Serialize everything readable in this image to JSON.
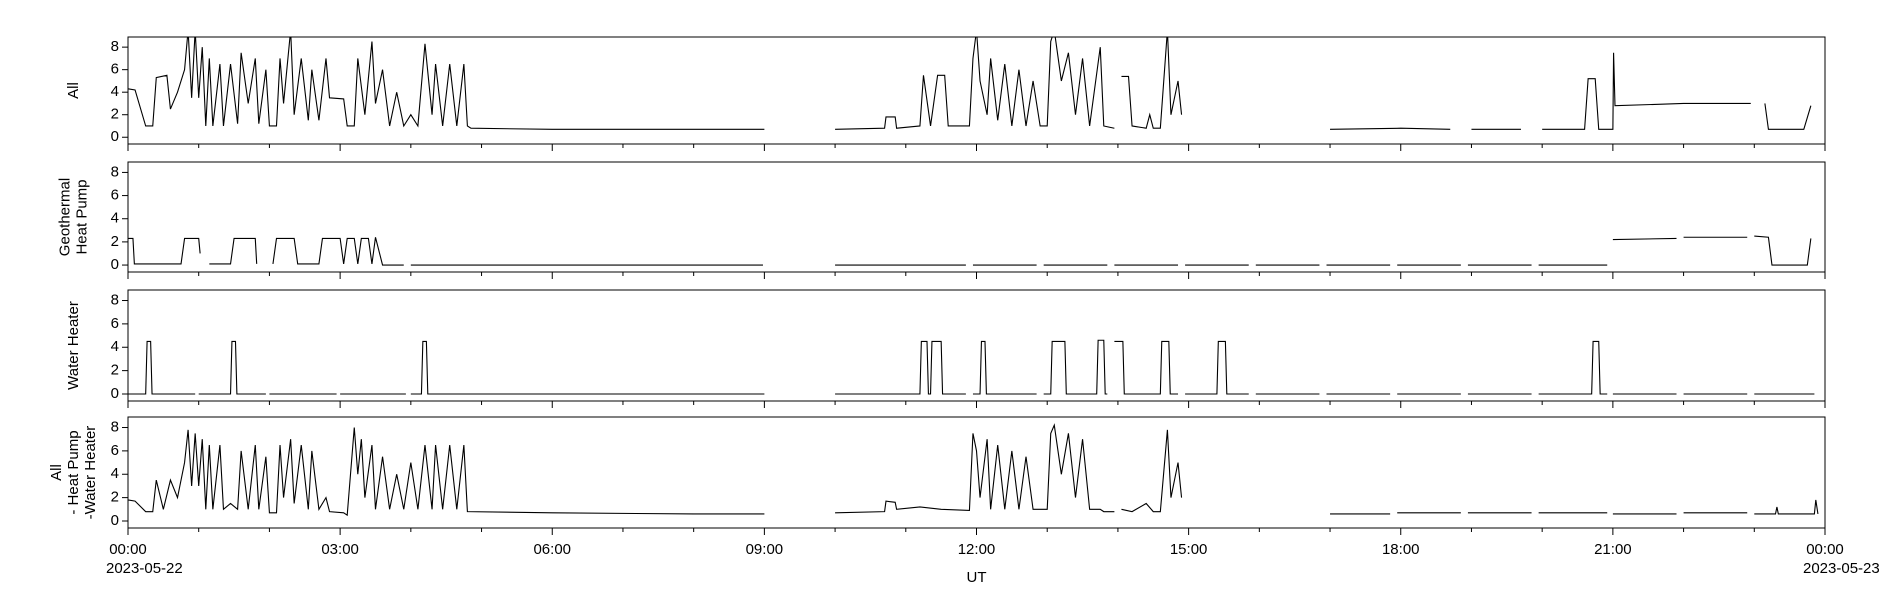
{
  "chart_data": [
    {
      "type": "line",
      "ylabel": [
        "All"
      ],
      "color": "#000000",
      "ylim": [
        -0.6,
        8.9
      ],
      "yticks": [
        0,
        2,
        4,
        6,
        8
      ],
      "xlim": [
        0,
        24
      ],
      "xticks": [
        0,
        3,
        6,
        9,
        12,
        15,
        18,
        21,
        24
      ],
      "xticks_minor": [
        1,
        2,
        4,
        5,
        7,
        8,
        10,
        11,
        13,
        14,
        16,
        17,
        19,
        20,
        22,
        23
      ],
      "x": [
        0,
        0.1,
        0.25,
        0.35,
        0.4,
        0.55,
        0.6,
        0.7,
        0.8,
        0.85,
        0.9,
        0.95,
        1.0,
        1.05,
        1.1,
        1.15,
        1.2,
        1.3,
        1.35,
        1.45,
        1.55,
        1.6,
        1.7,
        1.8,
        1.85,
        1.95,
        2.0,
        2.1,
        2.15,
        2.2,
        2.3,
        2.35,
        2.45,
        2.55,
        2.6,
        2.7,
        2.8,
        2.85,
        3.05,
        3.1,
        3.2,
        3.25,
        3.35,
        3.45,
        3.5,
        3.6,
        3.7,
        3.8,
        3.9,
        4.0,
        4.1,
        4.2,
        4.3,
        4.35,
        4.45,
        4.55,
        4.65,
        4.75,
        4.8,
        4.85,
        6,
        8,
        9,
        9.02,
        10,
        10.7,
        10.72,
        10.85,
        10.87,
        11.2,
        11.25,
        11.35,
        11.45,
        11.55,
        11.6,
        11.9,
        11.95,
        12,
        12.05,
        12.15,
        12.2,
        12.3,
        12.4,
        12.5,
        12.6,
        12.7,
        12.8,
        12.9,
        13,
        13.05,
        13.1,
        13.2,
        13.3,
        13.4,
        13.5,
        13.6,
        13.75,
        13.8,
        13.95,
        14,
        14.05,
        14.15,
        14.2,
        14.4,
        14.45,
        14.5,
        14.6,
        14.7,
        14.75,
        14.85,
        14.9,
        14.95,
        17,
        18,
        18.7,
        18.8,
        19,
        19.7,
        19.8,
        20,
        20.6,
        20.65,
        20.75,
        20.8,
        21,
        21.01,
        21.03,
        22,
        22.95,
        23.0,
        23.15,
        23.2,
        23.7,
        23.8
      ],
      "values": [
        4.3,
        4.2,
        1,
        1,
        5.3,
        5.5,
        2.5,
        4,
        6,
        9.5,
        3.5,
        9.5,
        3.5,
        8,
        1,
        7,
        1,
        6.5,
        1,
        6.5,
        1.2,
        7.5,
        3,
        7,
        1.2,
        6,
        1,
        1,
        7,
        3,
        9.5,
        2,
        7,
        1.5,
        6,
        1.5,
        7,
        3.5,
        3.4,
        1,
        1,
        7,
        2,
        8.5,
        3,
        6,
        1,
        4,
        1,
        2,
        1,
        8.3,
        2,
        6.5,
        1,
        6.5,
        1,
        6.5,
        1,
        0.8,
        0.7,
        0.7,
        0.7,
        null,
        0.7,
        0.8,
        1.8,
        1.8,
        0.8,
        1,
        5.5,
        1,
        5.5,
        5.5,
        1,
        1,
        7,
        9.5,
        5,
        2,
        7,
        1.5,
        6.5,
        1,
        6,
        1,
        5,
        1,
        1,
        8.5,
        9.5,
        5,
        7.5,
        2,
        7,
        1,
        8,
        1,
        0.8,
        null,
        5.4,
        5.4,
        1,
        0.8,
        2,
        0.8,
        0.8,
        9.5,
        2,
        5,
        2,
        null,
        0.7,
        0.8,
        0.7,
        null,
        0.7,
        0.7,
        null,
        0.7,
        0.7,
        5.2,
        5.2,
        0.7,
        0.7,
        7.5,
        2.8,
        3,
        3,
        null,
        3,
        0.7,
        0.7,
        2.8
      ]
    },
    {
      "type": "line",
      "ylabel": [
        "Geothermal",
        "Heat Pump"
      ],
      "color": "#000000",
      "ylim": [
        -0.6,
        8.9
      ],
      "yticks": [
        0,
        2,
        4,
        6,
        8
      ],
      "xlim": [
        0,
        24
      ],
      "xticks": [
        0,
        3,
        6,
        9,
        12,
        15,
        18,
        21,
        24
      ],
      "xticks_minor": [
        1,
        2,
        4,
        5,
        7,
        8,
        10,
        11,
        13,
        14,
        16,
        17,
        19,
        20,
        22,
        23
      ],
      "x": [
        0,
        0.07,
        0.09,
        0.75,
        0.8,
        1.0,
        1.02,
        1.1,
        1.15,
        1.45,
        1.5,
        1.8,
        1.82,
        2.0,
        2.05,
        2.1,
        2.35,
        2.4,
        2.7,
        2.75,
        3.0,
        3.05,
        3.1,
        3.2,
        3.25,
        3.3,
        3.4,
        3.45,
        3.5,
        3.6,
        3.9,
        3.93,
        4.0,
        8.98,
        9.0,
        10.0,
        11.85,
        11.9,
        11.95,
        12.85,
        12.9,
        12.95,
        13.85,
        13.9,
        13.95,
        14.85,
        14.9,
        14.95,
        15.85,
        15.9,
        15.95,
        16.85,
        16.9,
        16.95,
        17.85,
        17.9,
        17.95,
        18.85,
        18.9,
        18.95,
        19.85,
        19.9,
        19.95,
        20.92,
        20.97,
        21.0,
        21.9,
        21.95,
        22.0,
        22.9,
        22.95,
        23.0,
        23.2,
        23.25,
        23.75,
        23.8
      ],
      "values": [
        2.3,
        2.3,
        0.1,
        0.1,
        2.3,
        2.3,
        1,
        null,
        0.1,
        0.1,
        2.3,
        2.3,
        0.1,
        null,
        0.1,
        2.3,
        2.3,
        0.1,
        0.1,
        2.3,
        2.3,
        0.1,
        2.3,
        2.3,
        0.1,
        2.3,
        2.3,
        0.1,
        2.4,
        0,
        0,
        null,
        0,
        0,
        null,
        0,
        0,
        null,
        0,
        0,
        null,
        0,
        0,
        null,
        0,
        0,
        null,
        0,
        0,
        null,
        0,
        0,
        null,
        0,
        0,
        null,
        0,
        0,
        null,
        0,
        0,
        null,
        0,
        0,
        null,
        2.2,
        2.3,
        null,
        2.4,
        2.4,
        null,
        2.5,
        2.4,
        0,
        0,
        2.3
      ]
    },
    {
      "type": "line",
      "ylabel": [
        "Water Heater"
      ],
      "color": "#000000",
      "ylim": [
        -0.6,
        8.9
      ],
      "yticks": [
        0,
        2,
        4,
        6,
        8
      ],
      "xlim": [
        0,
        24
      ],
      "xticks": [
        0,
        3,
        6,
        9,
        12,
        15,
        18,
        21,
        24
      ],
      "xticks_minor": [
        1,
        2,
        4,
        5,
        7,
        8,
        10,
        11,
        13,
        14,
        16,
        17,
        19,
        20,
        22,
        23
      ],
      "x": [
        0,
        0.25,
        0.27,
        0.32,
        0.34,
        0.95,
        0.98,
        1.0,
        1.45,
        1.47,
        1.52,
        1.54,
        1.95,
        1.98,
        2.0,
        2.95,
        2.98,
        3.0,
        3.93,
        3.96,
        4.0,
        4.15,
        4.17,
        4.22,
        4.24,
        9.0,
        9.02,
        10.0,
        11.2,
        11.22,
        11.3,
        11.32,
        11.35,
        11.37,
        11.5,
        11.52,
        11.85,
        11.9,
        11.95,
        12.05,
        12.07,
        12.12,
        12.14,
        12.85,
        12.9,
        12.95,
        13.05,
        13.07,
        13.25,
        13.27,
        13.7,
        13.72,
        13.8,
        13.82,
        13.85,
        13.9,
        13.95,
        13.97,
        14.07,
        14.09,
        14.6,
        14.62,
        14.72,
        14.74,
        14.85,
        14.9,
        14.95,
        15.4,
        15.42,
        15.52,
        15.54,
        15.85,
        15.9,
        15.95,
        16.85,
        16.9,
        16.95,
        17.85,
        17.9,
        17.95,
        18.85,
        18.9,
        18.95,
        19.85,
        19.9,
        19.95,
        20.7,
        20.72,
        20.8,
        20.82,
        20.92,
        20.97,
        21.0,
        21.9,
        21.95,
        22.0,
        22.9,
        22.95,
        23.0,
        23.85
      ],
      "values": [
        0,
        0,
        4.5,
        4.5,
        0,
        0,
        null,
        0,
        0,
        4.5,
        4.5,
        0,
        0,
        null,
        0,
        0,
        null,
        0,
        0,
        null,
        0,
        0,
        4.5,
        4.5,
        0,
        0,
        null,
        0,
        0,
        4.5,
        4.5,
        0,
        0,
        4.5,
        4.5,
        0,
        0,
        null,
        0,
        0,
        4.5,
        4.5,
        0,
        0,
        null,
        0,
        0,
        4.5,
        4.5,
        0,
        0,
        4.6,
        4.6,
        0,
        0,
        null,
        4.5,
        4.5,
        4.5,
        0,
        0,
        4.5,
        4.5,
        0,
        0,
        null,
        0,
        0,
        4.5,
        4.5,
        0,
        0,
        null,
        0,
        0,
        null,
        0,
        0,
        null,
        0,
        0,
        null,
        0,
        0,
        null,
        0,
        0,
        4.5,
        4.5,
        0,
        0,
        null,
        0,
        0,
        null,
        0,
        0,
        null,
        0,
        0
      ]
    },
    {
      "type": "line",
      "ylabel": [
        "All",
        "- Heat Pump",
        "-Water Heater"
      ],
      "color": "#000000",
      "ylim": [
        -0.6,
        8.9
      ],
      "yticks": [
        0,
        2,
        4,
        6,
        8
      ],
      "xlim": [
        0,
        24
      ],
      "xticks": [
        {
          "value": 0,
          "label": "00:00"
        },
        {
          "value": 3,
          "label": "03:00"
        },
        {
          "value": 6,
          "label": "06:00"
        },
        {
          "value": 9,
          "label": "09:00"
        },
        {
          "value": 12,
          "label": "12:00"
        },
        {
          "value": 15,
          "label": "15:00"
        },
        {
          "value": 18,
          "label": "18:00"
        },
        {
          "value": 21,
          "label": "21:00"
        },
        {
          "value": 24,
          "label": "00:00"
        }
      ],
      "xticks_minor": [
        1,
        2,
        4,
        5,
        7,
        8,
        10,
        11,
        13,
        14,
        16,
        17,
        19,
        20,
        22,
        23
      ],
      "xlabel": "UT",
      "date_labels": [
        {
          "value": 0,
          "label": "2023-05-22"
        },
        {
          "value": 24,
          "label": "2023-05-23"
        }
      ],
      "x": [
        0,
        0.1,
        0.25,
        0.35,
        0.4,
        0.5,
        0.6,
        0.7,
        0.8,
        0.85,
        0.9,
        0.95,
        1.0,
        1.05,
        1.1,
        1.15,
        1.2,
        1.3,
        1.35,
        1.45,
        1.55,
        1.6,
        1.7,
        1.8,
        1.85,
        1.95,
        2.0,
        2.1,
        2.15,
        2.2,
        2.3,
        2.35,
        2.45,
        2.55,
        2.6,
        2.7,
        2.8,
        2.85,
        3.05,
        3.1,
        3.2,
        3.25,
        3.3,
        3.35,
        3.45,
        3.5,
        3.6,
        3.7,
        3.8,
        3.9,
        4.0,
        4.1,
        4.2,
        4.3,
        4.35,
        4.45,
        4.55,
        4.65,
        4.75,
        4.8,
        6,
        8,
        9,
        9.02,
        10,
        10.7,
        10.72,
        10.85,
        10.87,
        11.2,
        11.5,
        11.9,
        11.95,
        12,
        12.05,
        12.15,
        12.2,
        12.3,
        12.4,
        12.5,
        12.6,
        12.7,
        12.8,
        12.9,
        13,
        13.05,
        13.1,
        13.2,
        13.3,
        13.4,
        13.5,
        13.6,
        13.75,
        13.8,
        13.95,
        14,
        14.05,
        14.2,
        14.4,
        14.5,
        14.6,
        14.7,
        14.75,
        14.85,
        14.9,
        14.95,
        17,
        17.85,
        17.9,
        17.95,
        18.85,
        18.9,
        18.95,
        19.85,
        19.9,
        19.95,
        20.92,
        20.97,
        21.0,
        21.9,
        21.95,
        22.0,
        22.9,
        22.95,
        23.0,
        23.3,
        23.32,
        23.34,
        23.85,
        23.87,
        23.9
      ],
      "values": [
        1.8,
        1.7,
        0.8,
        0.8,
        3.5,
        1,
        3.5,
        2,
        5,
        7.8,
        3,
        7.5,
        3,
        7,
        1,
        6.5,
        1,
        6.5,
        1,
        1.5,
        1,
        6,
        1,
        6.5,
        1,
        5.5,
        0.7,
        0.7,
        6.5,
        2,
        7,
        1.5,
        6.5,
        1,
        6,
        1,
        2,
        0.8,
        0.7,
        0.5,
        8,
        4,
        7,
        2,
        6.5,
        1,
        5.5,
        1,
        4,
        1,
        5,
        1,
        6.5,
        1,
        6.5,
        1,
        6.5,
        1,
        6.5,
        0.8,
        0.7,
        0.6,
        0.6,
        null,
        0.7,
        0.8,
        1.7,
        1.6,
        1,
        1.2,
        1,
        0.9,
        7.5,
        6,
        2,
        7,
        1,
        6.5,
        1,
        6,
        1,
        5.5,
        1,
        1,
        1,
        7.5,
        8.2,
        4,
        7.5,
        2,
        7,
        1,
        1,
        0.8,
        0.8,
        null,
        1,
        0.8,
        1.5,
        0.8,
        0.8,
        7.8,
        2,
        5,
        2,
        null,
        0.6,
        0.6,
        null,
        0.7,
        0.7,
        null,
        0.7,
        0.7,
        null,
        0.7,
        0.7,
        null,
        0.6,
        0.6,
        null,
        0.7,
        0.7,
        null,
        0.6,
        0.6,
        1.2,
        0.6,
        0.6,
        1.8,
        0.6
      ]
    }
  ]
}
